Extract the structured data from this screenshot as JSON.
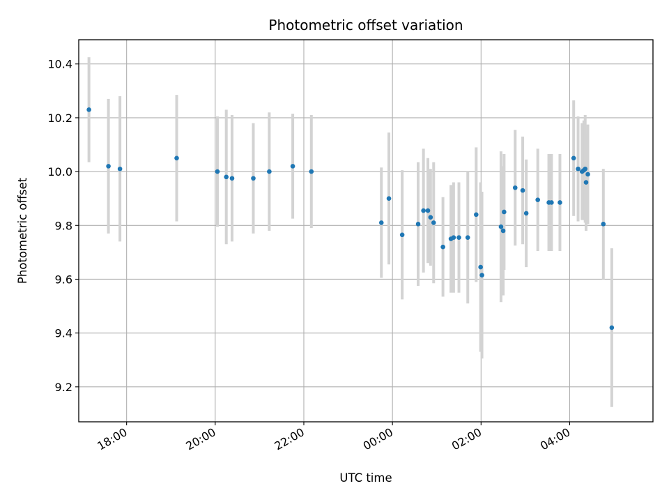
{
  "chart_data": {
    "type": "scatter",
    "title": "Photometric offset variation",
    "xlabel": "UTC time",
    "ylabel": "Photometric offset",
    "x_axis_kind": "time",
    "x_unit": "hours, relative to 00:00 UTC",
    "xlim": [
      -7.08,
      5.88
    ],
    "ylim": [
      9.07,
      10.49
    ],
    "x_ticks": [
      {
        "value": -6,
        "label": "18:00"
      },
      {
        "value": -4,
        "label": "20:00"
      },
      {
        "value": -2,
        "label": "22:00"
      },
      {
        "value": 0,
        "label": "00:00"
      },
      {
        "value": 2,
        "label": "02:00"
      },
      {
        "value": 4,
        "label": "04:00"
      }
    ],
    "y_ticks": [
      {
        "value": 9.2,
        "label": "9.2"
      },
      {
        "value": 9.4,
        "label": "9.4"
      },
      {
        "value": 9.6,
        "label": "9.6"
      },
      {
        "value": 9.8,
        "label": "9.8"
      },
      {
        "value": 10.0,
        "label": "10.0"
      },
      {
        "value": 10.2,
        "label": "10.2"
      },
      {
        "value": 10.4,
        "label": "10.4"
      }
    ],
    "grid": true,
    "point_color": "#1f77b4",
    "errorbar_color": "#d3d3d3",
    "points": [
      {
        "x": -6.85,
        "y": 10.23,
        "err": 0.195
      },
      {
        "x": -6.41,
        "y": 10.02,
        "err": 0.25
      },
      {
        "x": -6.15,
        "y": 10.01,
        "err": 0.27
      },
      {
        "x": -4.87,
        "y": 10.05,
        "err": 0.235
      },
      {
        "x": -3.95,
        "y": 10.0,
        "err": 0.205
      },
      {
        "x": -3.75,
        "y": 9.98,
        "err": 0.25
      },
      {
        "x": -3.62,
        "y": 9.975,
        "err": 0.235
      },
      {
        "x": -3.14,
        "y": 9.975,
        "err": 0.205
      },
      {
        "x": -2.78,
        "y": 10.0,
        "err": 0.22
      },
      {
        "x": -2.25,
        "y": 10.02,
        "err": 0.195
      },
      {
        "x": -1.83,
        "y": 10.0,
        "err": 0.21
      },
      {
        "x": -0.25,
        "y": 9.81,
        "err": 0.205
      },
      {
        "x": -0.08,
        "y": 9.9,
        "err": 0.245
      },
      {
        "x": 0.22,
        "y": 9.765,
        "err": 0.24
      },
      {
        "x": 0.58,
        "y": 9.805,
        "err": 0.23
      },
      {
        "x": 0.7,
        "y": 9.855,
        "err": 0.23
      },
      {
        "x": 0.8,
        "y": 9.855,
        "err": 0.195
      },
      {
        "x": 0.86,
        "y": 9.83,
        "err": 0.18
      },
      {
        "x": 0.93,
        "y": 9.81,
        "err": 0.225
      },
      {
        "x": 1.14,
        "y": 9.72,
        "err": 0.185
      },
      {
        "x": 1.32,
        "y": 9.75,
        "err": 0.2
      },
      {
        "x": 1.38,
        "y": 9.755,
        "err": 0.205
      },
      {
        "x": 1.5,
        "y": 9.755,
        "err": 0.205
      },
      {
        "x": 1.7,
        "y": 9.755,
        "err": 0.245
      },
      {
        "x": 1.89,
        "y": 9.84,
        "err": 0.25
      },
      {
        "x": 1.99,
        "y": 9.645,
        "err": 0.315
      },
      {
        "x": 2.02,
        "y": 9.615,
        "err": 0.31
      },
      {
        "x": 2.45,
        "y": 9.795,
        "err": 0.28
      },
      {
        "x": 2.5,
        "y": 9.78,
        "err": 0.24
      },
      {
        "x": 2.52,
        "y": 9.85,
        "err": 0.215
      },
      {
        "x": 2.77,
        "y": 9.94,
        "err": 0.215
      },
      {
        "x": 2.94,
        "y": 9.93,
        "err": 0.2
      },
      {
        "x": 3.02,
        "y": 9.845,
        "err": 0.2
      },
      {
        "x": 3.28,
        "y": 9.895,
        "err": 0.19
      },
      {
        "x": 3.53,
        "y": 9.885,
        "err": 0.18
      },
      {
        "x": 3.59,
        "y": 9.885,
        "err": 0.18
      },
      {
        "x": 3.78,
        "y": 9.885,
        "err": 0.18
      },
      {
        "x": 4.09,
        "y": 10.05,
        "err": 0.215
      },
      {
        "x": 4.19,
        "y": 10.01,
        "err": 0.195
      },
      {
        "x": 4.28,
        "y": 10.0,
        "err": 0.18
      },
      {
        "x": 4.32,
        "y": 10.005,
        "err": 0.185
      },
      {
        "x": 4.35,
        "y": 10.01,
        "err": 0.2
      },
      {
        "x": 4.37,
        "y": 9.96,
        "err": 0.18
      },
      {
        "x": 4.41,
        "y": 9.99,
        "err": 0.185
      },
      {
        "x": 4.76,
        "y": 9.805,
        "err": 0.205
      },
      {
        "x": 4.95,
        "y": 9.42,
        "err": 0.295
      }
    ]
  }
}
